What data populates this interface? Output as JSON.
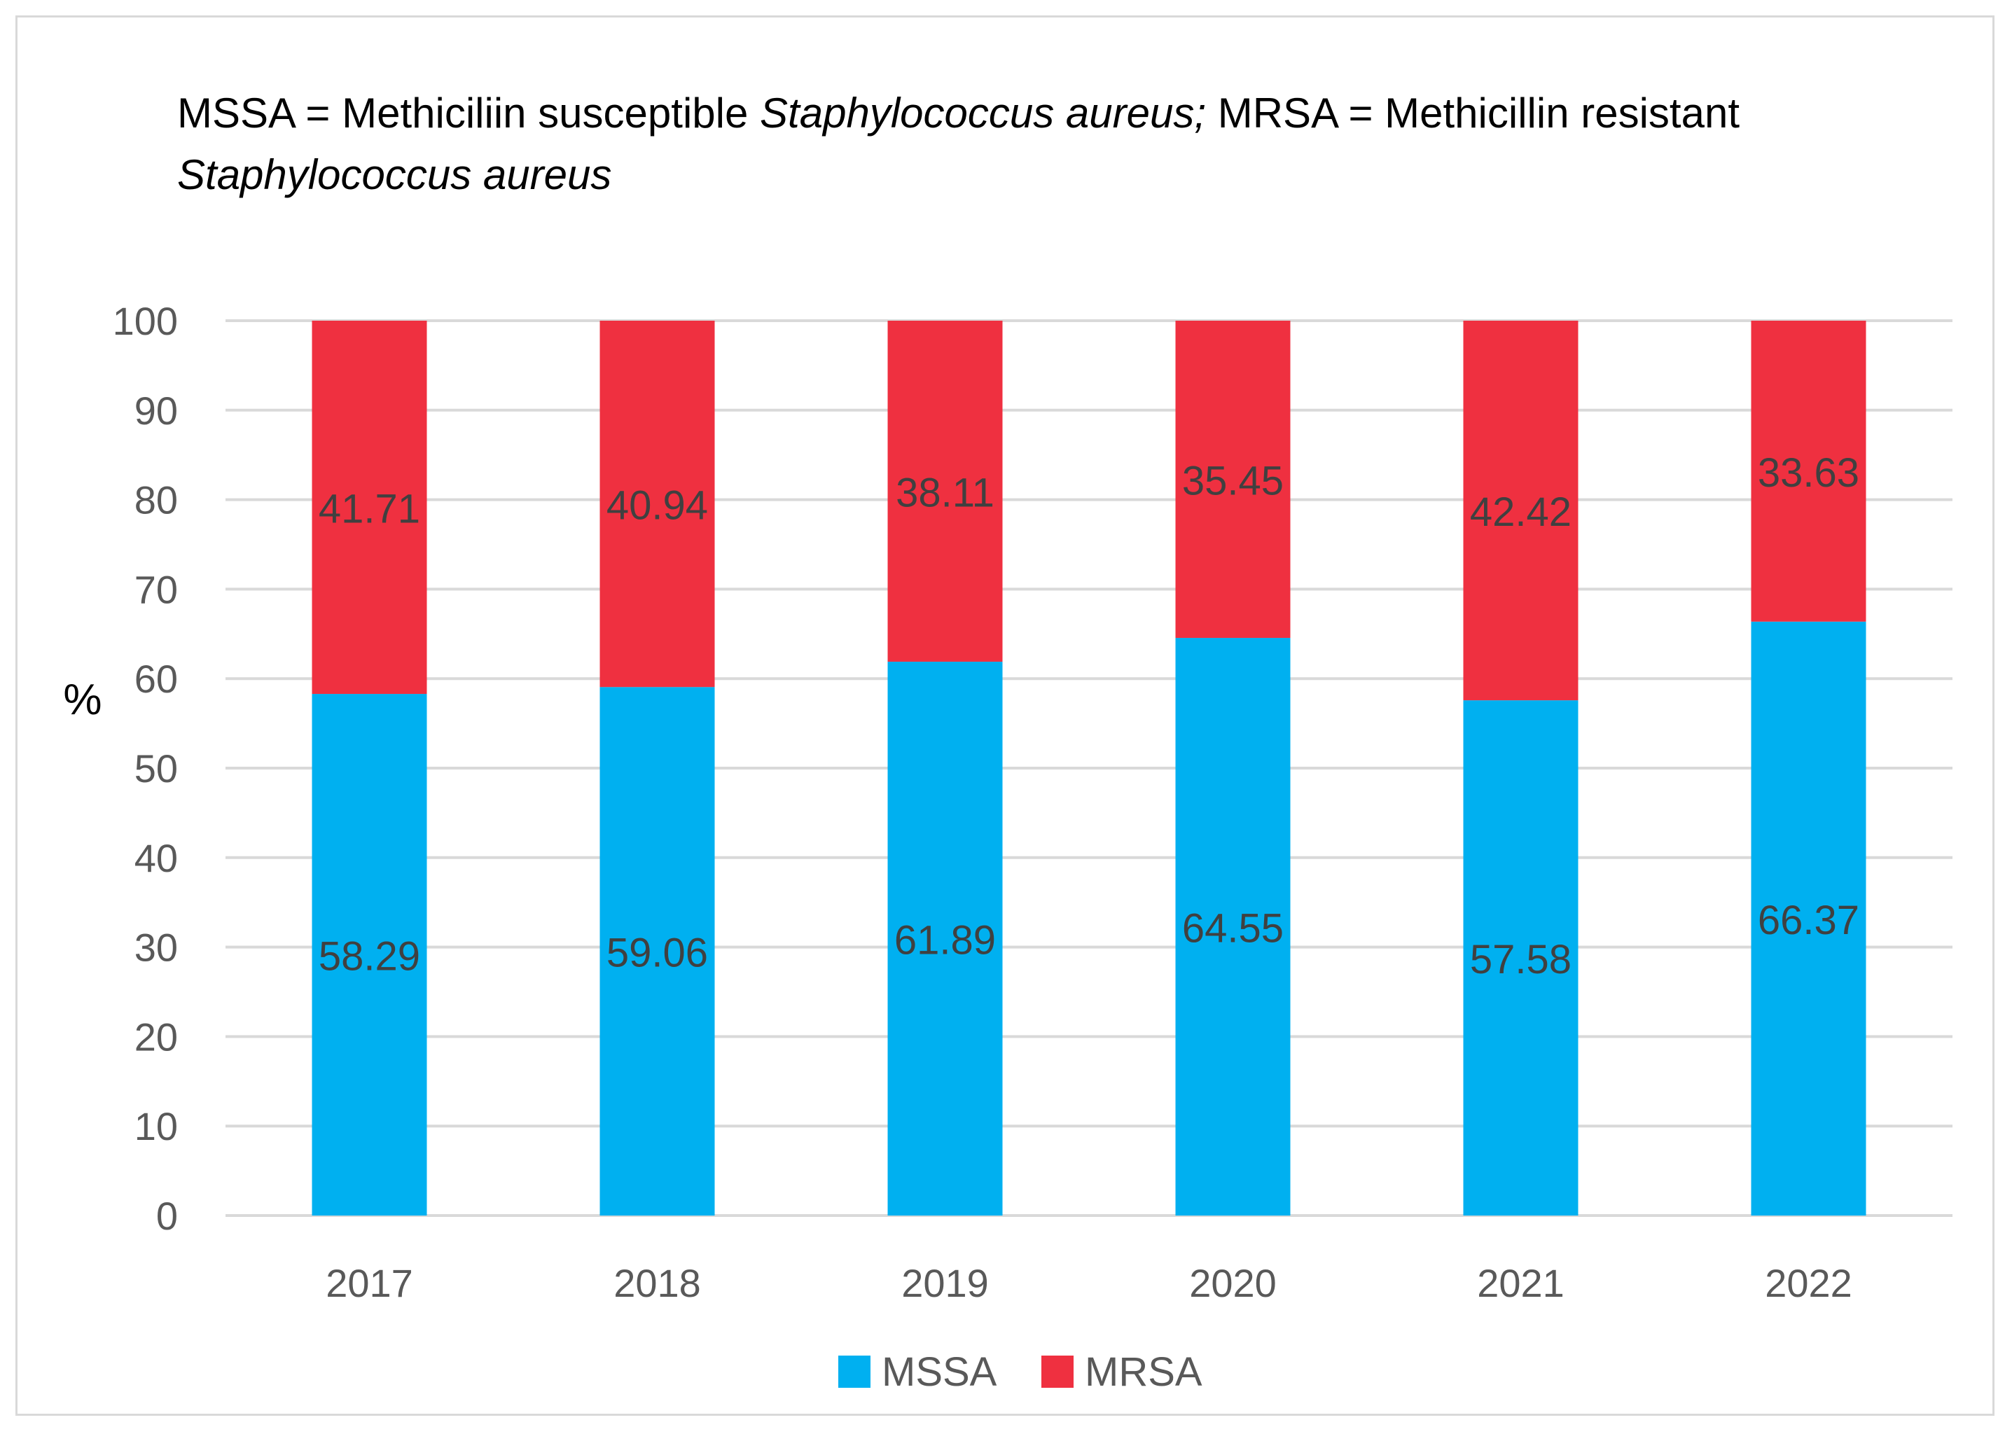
{
  "chart_data": {
    "type": "bar",
    "stacked": true,
    "title": {
      "p1": "MSSA = Methiciliin susceptible ",
      "i1": "Staphylococcus aureus;",
      "p2": " MRSA = Methicillin resistant ",
      "i2": "Staphylococcus aureus"
    },
    "xlabel": "",
    "ylabel": "%",
    "ylim": [
      0,
      100
    ],
    "yticks": [
      0,
      10,
      20,
      30,
      40,
      50,
      60,
      70,
      80,
      90,
      100
    ],
    "grid": true,
    "categories": [
      "2017",
      "2018",
      "2019",
      "2020",
      "2021",
      "2022"
    ],
    "series": [
      {
        "name": "MSSA",
        "color": "#00b0f0",
        "values": [
          58.29,
          59.06,
          61.89,
          64.55,
          57.58,
          66.37
        ]
      },
      {
        "name": "MRSA",
        "color": "#ef3040",
        "values": [
          41.71,
          40.94,
          38.11,
          35.45,
          42.42,
          33.63
        ]
      }
    ],
    "legend_position": "bottom"
  }
}
